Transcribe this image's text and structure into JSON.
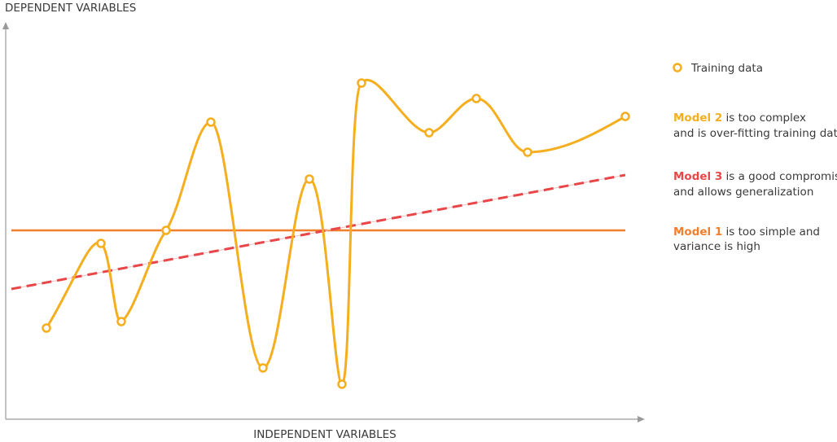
{
  "y_axis_label": "DEPENDENT VARIABLES",
  "x_axis_label": "INDEPENDENT VARIABLES",
  "legend": [
    {
      "label": "Training data"
    },
    {
      "name": "Model 2",
      "lines": [
        "is too complex",
        "and is over-fitting training data"
      ]
    },
    {
      "name": "Model 3",
      "lines": [
        "is a good compromise",
        "and allows generalization"
      ]
    },
    {
      "name": "Model 1",
      "lines": [
        "is too simple and",
        "variance is high"
      ]
    }
  ]
}
